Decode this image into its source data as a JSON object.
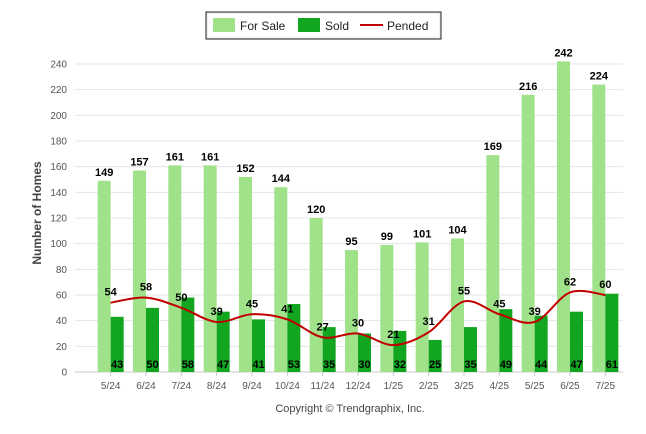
{
  "chart_data": {
    "type": "bar",
    "categories": [
      "5/24",
      "6/24",
      "7/24",
      "8/24",
      "9/24",
      "10/24",
      "11/24",
      "12/24",
      "1/25",
      "2/25",
      "3/25",
      "4/25",
      "5/25",
      "6/25",
      "7/25"
    ],
    "series": [
      {
        "name": "For Sale",
        "type": "bar",
        "color": "#a0e28a",
        "values": [
          149,
          157,
          161,
          161,
          152,
          144,
          120,
          95,
          99,
          101,
          104,
          169,
          216,
          242,
          224
        ]
      },
      {
        "name": "Sold",
        "type": "bar",
        "color": "#12a51f",
        "values": [
          43,
          50,
          58,
          47,
          41,
          53,
          35,
          30,
          32,
          25,
          35,
          49,
          44,
          47,
          61
        ]
      },
      {
        "name": "Pended",
        "type": "line",
        "color": "#c00000",
        "values": [
          54,
          58,
          50,
          39,
          45,
          41,
          27,
          30,
          21,
          31,
          55,
          45,
          39,
          62,
          60
        ]
      }
    ],
    "ylabel": "Number of Homes",
    "xlabel": "",
    "ylim": [
      0,
      240
    ],
    "yticks": [
      0,
      20,
      40,
      60,
      80,
      100,
      120,
      140,
      160,
      180,
      200,
      220,
      240
    ],
    "grid": true,
    "legend_position": "top-center"
  },
  "credit": "Copyright © Trendgraphix, Inc."
}
